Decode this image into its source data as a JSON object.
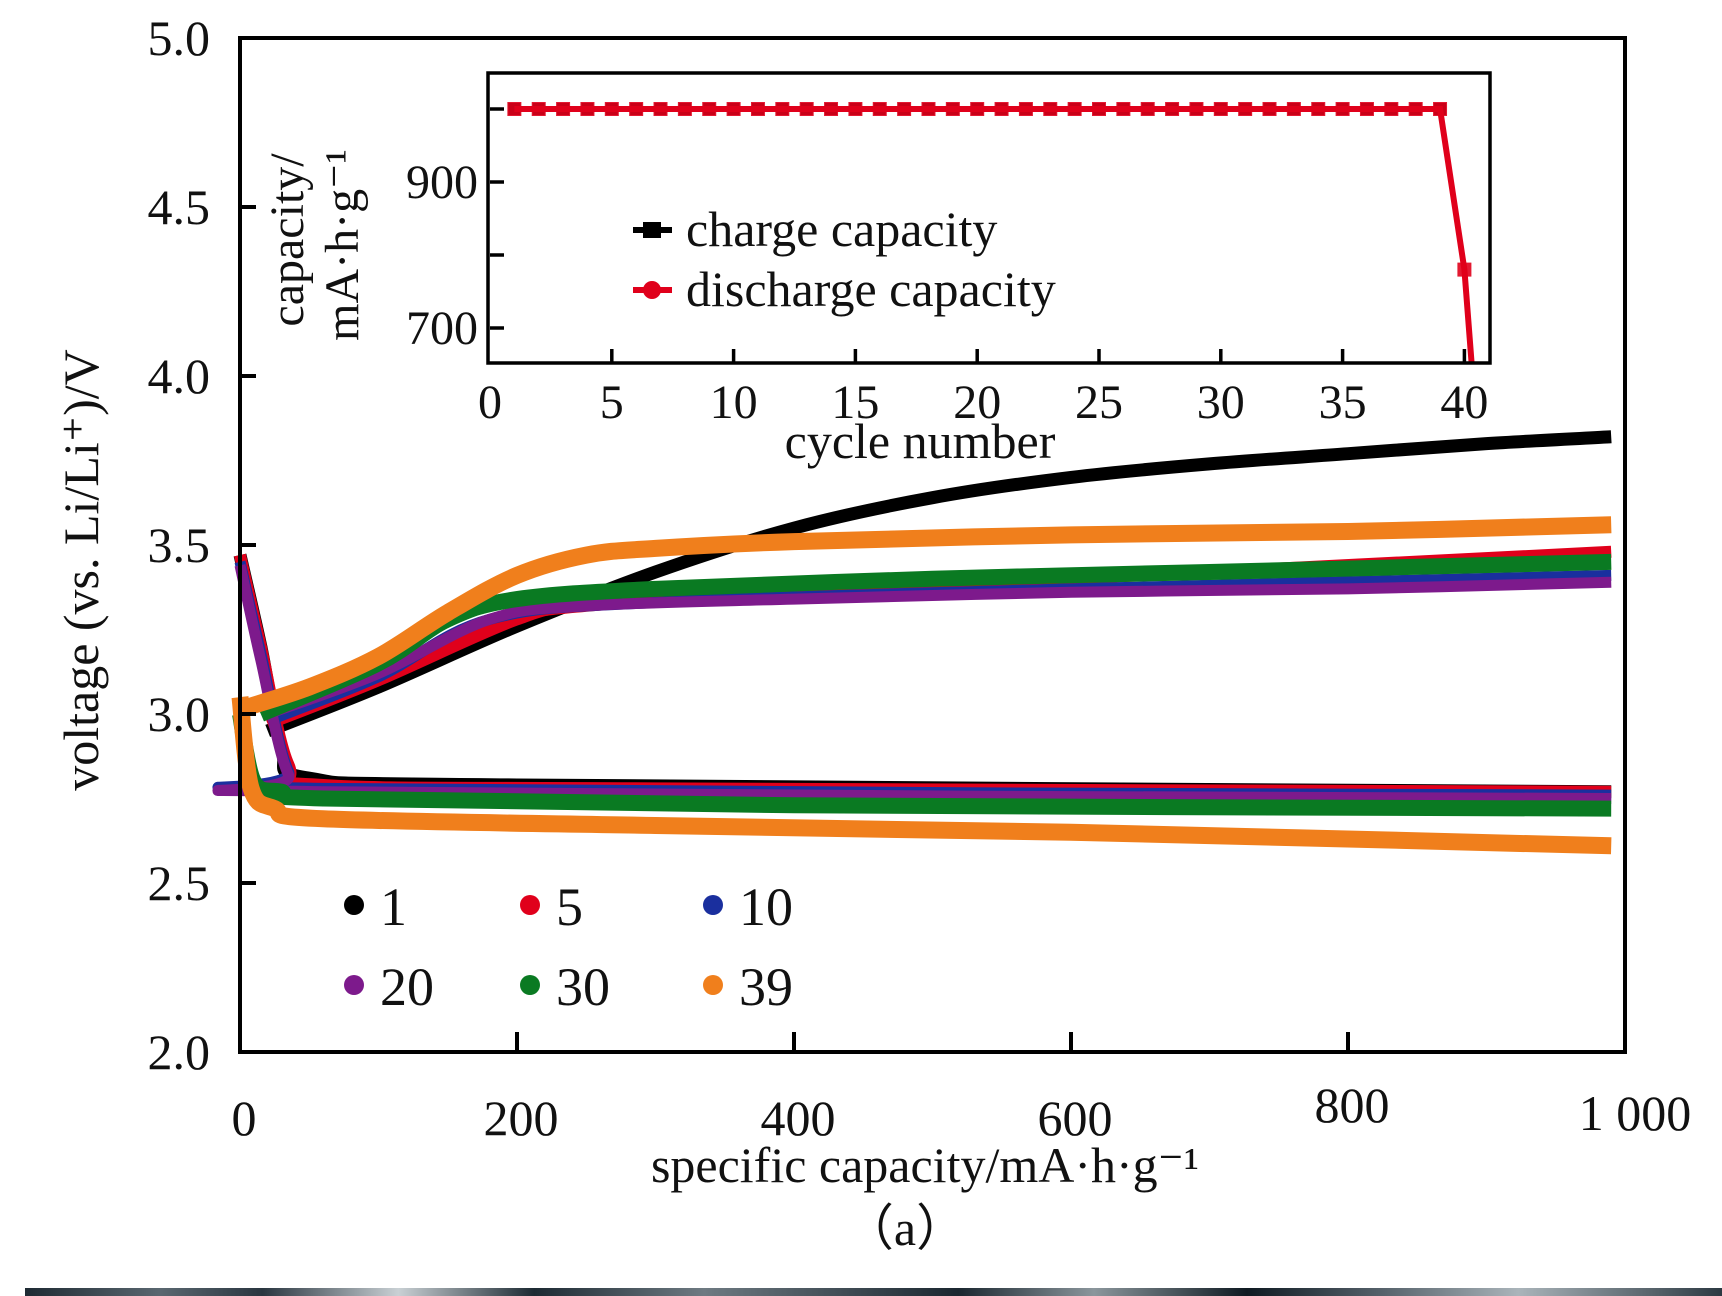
{
  "chart_data": [
    {
      "id": "main",
      "type": "line",
      "title": "",
      "panel_label": "（a）",
      "xlabel": "specific capacity/mA·h·g⁻¹",
      "ylabel": "voltage (vs. Li/Li⁺)/V",
      "xlim": [
        0,
        1000
      ],
      "ylim": [
        2.0,
        5.0
      ],
      "xticks": [
        0,
        200,
        400,
        600,
        800,
        1000
      ],
      "xtick_labels": [
        "0",
        "200",
        "400",
        "600",
        "800",
        "1 000"
      ],
      "yticks": [
        2.0,
        2.5,
        3.0,
        3.5,
        4.0,
        4.5,
        5.0
      ],
      "ytick_labels": [
        "2.0",
        "2.5",
        "3.0",
        "3.5",
        "4.0",
        "4.5",
        "5.0"
      ],
      "grid": false,
      "legend_position": "bottom-left",
      "legend": [
        {
          "label": "1",
          "color": "#000000"
        },
        {
          "label": "5",
          "color": "#e0001b"
        },
        {
          "label": "10",
          "color": "#1a2f9e"
        },
        {
          "label": "20",
          "color": "#7d1a8c"
        },
        {
          "label": "30",
          "color": "#0a7a22"
        },
        {
          "label": "39",
          "color": "#f07f1c"
        }
      ],
      "series": [
        {
          "name": "1",
          "color": "#000000",
          "discharge": [
            [
              0,
              3.47
            ],
            [
              15,
              3.2
            ],
            [
              30,
              2.9
            ],
            [
              50,
              2.81
            ],
            [
              200,
              2.79
            ],
            [
              990,
              2.77
            ]
          ],
          "charge": [
            [
              20,
              2.95
            ],
            [
              100,
              3.08
            ],
            [
              200,
              3.26
            ],
            [
              300,
              3.42
            ],
            [
              400,
              3.55
            ],
            [
              500,
              3.64
            ],
            [
              600,
              3.7
            ],
            [
              700,
              3.74
            ],
            [
              800,
              3.77
            ],
            [
              900,
              3.8
            ],
            [
              990,
              3.82
            ]
          ]
        },
        {
          "name": "5",
          "color": "#e0001b",
          "discharge": [
            [
              0,
              3.47
            ],
            [
              15,
              3.2
            ],
            [
              35,
              2.85
            ],
            [
              60,
              2.79
            ],
            [
              300,
              2.78
            ],
            [
              990,
              2.77
            ]
          ],
          "charge": [
            [
              20,
              2.97
            ],
            [
              100,
              3.1
            ],
            [
              200,
              3.28
            ],
            [
              250,
              3.32
            ],
            [
              400,
              3.36
            ],
            [
              700,
              3.42
            ],
            [
              990,
              3.48
            ]
          ]
        },
        {
          "name": "10",
          "color": "#1a2f9e",
          "discharge": [
            [
              0,
              3.45
            ],
            [
              15,
              3.18
            ],
            [
              35,
              2.83
            ],
            [
              60,
              2.78
            ],
            [
              990,
              2.76
            ]
          ],
          "charge": [
            [
              20,
              2.98
            ],
            [
              100,
              3.11
            ],
            [
              180,
              3.28
            ],
            [
              300,
              3.33
            ],
            [
              600,
              3.37
            ],
            [
              990,
              3.41
            ]
          ]
        },
        {
          "name": "20",
          "color": "#7d1a8c",
          "discharge": [
            [
              0,
              3.44
            ],
            [
              15,
              3.16
            ],
            [
              35,
              2.82
            ],
            [
              60,
              2.77
            ],
            [
              990,
              2.75
            ]
          ],
          "charge": [
            [
              20,
              3.0
            ],
            [
              100,
              3.12
            ],
            [
              180,
              3.28
            ],
            [
              250,
              3.32
            ],
            [
              400,
              3.34
            ],
            [
              600,
              3.36
            ],
            [
              800,
              3.37
            ],
            [
              990,
              3.39
            ]
          ]
        },
        {
          "name": "30",
          "color": "#0a7a22",
          "discharge": [
            [
              0,
              3.0
            ],
            [
              10,
              2.8
            ],
            [
              30,
              2.77
            ],
            [
              60,
              2.75
            ],
            [
              400,
              2.73
            ],
            [
              990,
              2.72
            ]
          ],
          "charge": [
            [
              15,
              3.0
            ],
            [
              100,
              3.15
            ],
            [
              150,
              3.28
            ],
            [
              200,
              3.34
            ],
            [
              300,
              3.37
            ],
            [
              500,
              3.4
            ],
            [
              700,
              3.42
            ],
            [
              990,
              3.45
            ]
          ]
        },
        {
          "name": "39",
          "color": "#f07f1c",
          "discharge": [
            [
              0,
              3.05
            ],
            [
              8,
              2.78
            ],
            [
              25,
              2.72
            ],
            [
              60,
              2.69
            ],
            [
              300,
              2.67
            ],
            [
              600,
              2.65
            ],
            [
              990,
              2.61
            ]
          ],
          "charge": [
            [
              5,
              3.02
            ],
            [
              50,
              3.08
            ],
            [
              100,
              3.17
            ],
            [
              150,
              3.3
            ],
            [
              200,
              3.41
            ],
            [
              250,
              3.47
            ],
            [
              300,
              3.49
            ],
            [
              400,
              3.51
            ],
            [
              600,
              3.53
            ],
            [
              800,
              3.54
            ],
            [
              990,
              3.56
            ]
          ]
        }
      ]
    },
    {
      "id": "inset",
      "type": "line",
      "title": "",
      "xlabel": "cycle number",
      "ylabel": "capacity/\nmA·h·g⁻¹",
      "ylabel_lines": [
        "capacity/",
        "mA·h·g⁻¹"
      ],
      "xlim": [
        0,
        41
      ],
      "ylim": [
        650,
        1050
      ],
      "xticks": [
        0,
        5,
        10,
        15,
        20,
        25,
        30,
        35,
        40
      ],
      "xtick_labels": [
        "0",
        "5",
        "10",
        "15",
        "20",
        "25",
        "30",
        "35",
        "40"
      ],
      "yticks": [
        700,
        800,
        900,
        1000
      ],
      "ytick_labels": [
        "700",
        "",
        "900",
        ""
      ],
      "grid": false,
      "legend_position": "center-left",
      "legend": [
        {
          "label": "charge capacity",
          "color": "#000000"
        },
        {
          "label": "discharge capacity",
          "color": "#e0001b"
        }
      ],
      "series": [
        {
          "name": "charge capacity",
          "color": "#000000",
          "x": [
            1,
            2,
            3,
            4,
            5,
            6,
            7,
            8,
            9,
            10,
            11,
            12,
            13,
            14,
            15,
            16,
            17,
            18,
            19,
            20,
            21,
            22,
            23,
            24,
            25,
            26,
            27,
            28,
            29,
            30,
            31,
            32,
            33,
            34,
            35,
            36,
            37,
            38,
            39
          ],
          "y": [
            1000,
            1000,
            1000,
            1000,
            1000,
            1000,
            1000,
            1000,
            1000,
            1000,
            1000,
            1000,
            1000,
            1000,
            1000,
            1000,
            1000,
            1000,
            1000,
            1000,
            1000,
            1000,
            1000,
            1000,
            1000,
            1000,
            1000,
            1000,
            1000,
            1000,
            1000,
            1000,
            1000,
            1000,
            1000,
            1000,
            1000,
            1000,
            1000
          ]
        },
        {
          "name": "discharge capacity",
          "color": "#e0001b",
          "x": [
            1,
            2,
            3,
            4,
            5,
            6,
            7,
            8,
            9,
            10,
            11,
            12,
            13,
            14,
            15,
            16,
            17,
            18,
            19,
            20,
            21,
            22,
            23,
            24,
            25,
            26,
            27,
            28,
            29,
            30,
            31,
            32,
            33,
            34,
            35,
            36,
            37,
            38,
            39,
            40,
            40.3
          ],
          "y": [
            1000,
            1000,
            1000,
            1000,
            1000,
            1000,
            1000,
            1000,
            1000,
            1000,
            1000,
            1000,
            1000,
            1000,
            1000,
            1000,
            1000,
            1000,
            1000,
            1000,
            1000,
            1000,
            1000,
            1000,
            1000,
            1000,
            1000,
            1000,
            1000,
            1000,
            1000,
            1000,
            1000,
            1000,
            1000,
            1000,
            1000,
            1000,
            1000,
            780,
            650
          ]
        }
      ]
    }
  ]
}
